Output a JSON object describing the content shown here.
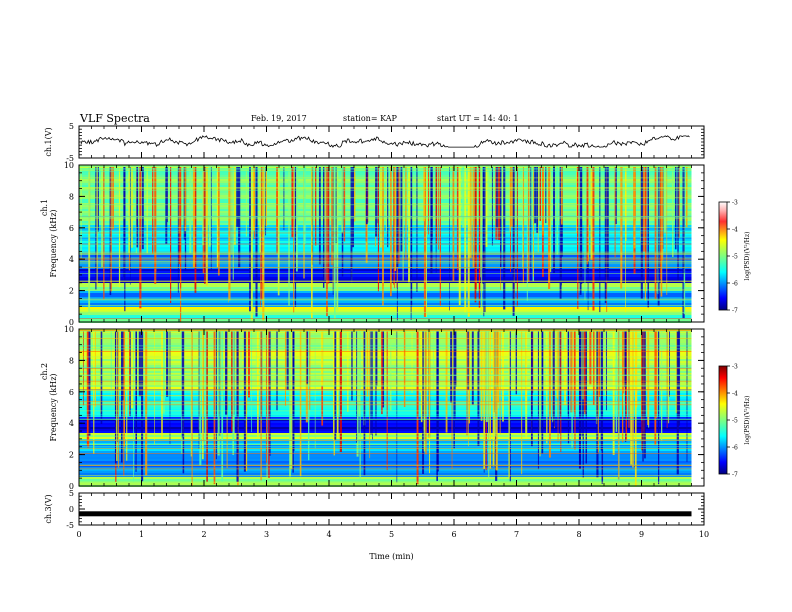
{
  "chart_data": {
    "type": "heatmap",
    "title": "VLF Spectra",
    "date": "Feb. 19, 2017",
    "station": "station= KAP",
    "start_time": "start  UT  =   14: 40: 1",
    "xlabel": "Time  (min)",
    "xlim": [
      0,
      10
    ],
    "x_ticks": [
      "0",
      "1",
      "2",
      "3",
      "4",
      "5",
      "6",
      "7",
      "8",
      "9",
      "10"
    ],
    "data_end_min": 9.8,
    "panels": [
      {
        "id": "ch1_wave",
        "kind": "line",
        "ylabel": "ch.1(V)",
        "ylim": [
          -5,
          5
        ],
        "y_ticks": [
          "5",
          "-5"
        ],
        "trace_range": [
          -1.6,
          1.9
        ]
      },
      {
        "id": "ch1_spec",
        "kind": "spectrogram",
        "ylabel_top": "ch.1",
        "ylabel": "Frequency  (kHz)",
        "ylim": [
          0,
          10
        ],
        "y_ticks": [
          "0",
          "2",
          "4",
          "6",
          "8",
          "10"
        ],
        "colorbar": {
          "label": "log(PSD)(V²/Hz)",
          "range": [
            -7,
            -3
          ],
          "ticks": [
            "-3",
            "-4",
            "-5",
            "-6",
            "-7"
          ]
        },
        "band_levels_by_kHz": [
          {
            "from": 0.0,
            "to": 0.6,
            "level": -5.2
          },
          {
            "from": 0.6,
            "to": 1.0,
            "level": -4.6
          },
          {
            "from": 1.0,
            "to": 2.0,
            "level": -6.0
          },
          {
            "from": 2.0,
            "to": 2.6,
            "level": -5.0
          },
          {
            "from": 2.6,
            "to": 3.5,
            "level": -6.6
          },
          {
            "from": 3.5,
            "to": 4.5,
            "level": -6.0
          },
          {
            "from": 4.5,
            "to": 6.2,
            "level": -5.6
          },
          {
            "from": 6.2,
            "to": 10.0,
            "level": -5.0
          }
        ]
      },
      {
        "id": "ch2_spec",
        "kind": "spectrogram",
        "ylabel_top": "ch.2",
        "ylabel": "Frequency  (kHz)",
        "ylim": [
          0,
          10
        ],
        "y_ticks": [
          "0",
          "2",
          "4",
          "6",
          "8",
          "10"
        ],
        "colorbar": {
          "label": "log(PSD)(V²/Hz)",
          "range": [
            -7,
            -3
          ],
          "ticks": [
            "-3",
            "-4",
            "-5",
            "-6",
            "-7"
          ]
        },
        "band_levels_by_kHz": [
          {
            "from": 0.0,
            "to": 0.6,
            "level": -5.0
          },
          {
            "from": 0.6,
            "to": 2.0,
            "level": -6.0
          },
          {
            "from": 2.0,
            "to": 3.0,
            "level": -5.8
          },
          {
            "from": 3.0,
            "to": 3.5,
            "level": -4.8
          },
          {
            "from": 3.5,
            "to": 4.4,
            "level": -6.6
          },
          {
            "from": 4.4,
            "to": 6.2,
            "level": -5.4
          },
          {
            "from": 6.2,
            "to": 10.0,
            "level": -4.8
          }
        ]
      },
      {
        "id": "ch3_wave",
        "kind": "line",
        "ylabel": "ch.3(V)",
        "ylim": [
          -5,
          5
        ],
        "y_ticks": [
          "5",
          "0",
          "-5"
        ],
        "trace_value": -1.5
      }
    ]
  }
}
